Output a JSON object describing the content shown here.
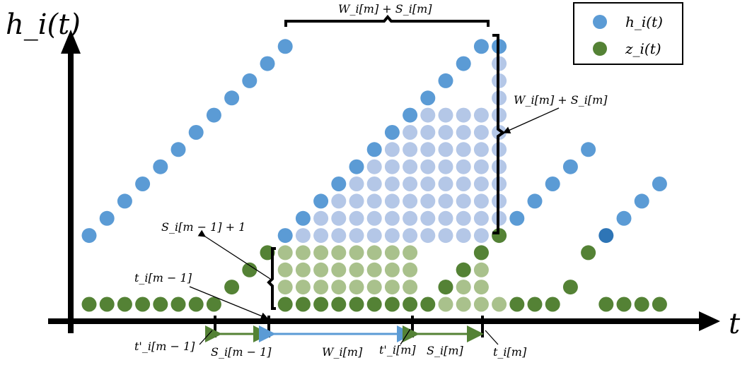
{
  "labels": {
    "y_axis": "h_i(t)",
    "x_axis": "t",
    "top_brace": "W_i[m] + S_i[m]",
    "right_brace": "W_i[m] + S_i[m]",
    "s_prev_plus_one": "S_i[m − 1] + 1",
    "t_prev": "t_i[m − 1]",
    "tprime_prev": "t'_i[m − 1]",
    "s_prev_interval": "S_i[m − 1]",
    "w_interval": "W_i[m]",
    "tprime_m": "t'_i[m]",
    "s_interval": "S_i[m]",
    "t_m": "t_i[m]"
  },
  "legend": [
    {
      "label": "h_i(t)",
      "color": "#5b9bd5"
    },
    {
      "label": "z_i(t)",
      "color": "#548235"
    }
  ],
  "colors": {
    "h_blue": "#5b9bd5",
    "h_light": "#b4c7e7",
    "z_green": "#548235",
    "z_light": "#a9c18c",
    "h_dark": "#2e75b6",
    "interval_green": "#548235",
    "interval_blue": "#5b9bd5"
  }
}
